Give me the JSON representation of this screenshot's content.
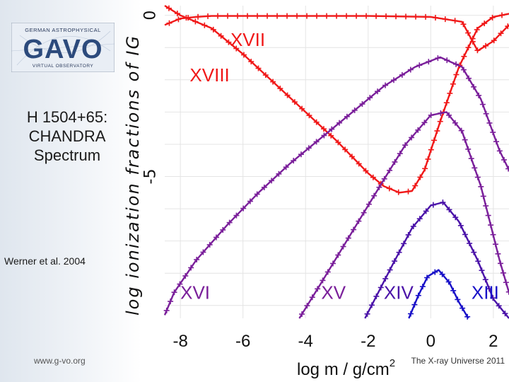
{
  "logo": {
    "org_line": "GERMAN ASTROPHYSICAL",
    "name": "GAVO",
    "sub_line": "VIRTUAL OBSERVATORY"
  },
  "slide": {
    "title_lines": [
      "H 1504+65:",
      "CHANDRA",
      "Spectrum"
    ],
    "credit": "Werner et al. 2004",
    "footer_left": "www.g-vo.org",
    "footer_right": "The X-ray Universe 2011"
  },
  "colors": {
    "red": "#f01818",
    "purple": "#7a1f9a",
    "violet": "#4a12a8",
    "blue": "#1810c8"
  },
  "chart_data": {
    "type": "line",
    "title": "",
    "xlabel": "log m / g/cm",
    "xlabel_superscript": "2",
    "ylabel": "log ionization fractions of IG",
    "xlim": [
      -8.5,
      2.5
    ],
    "ylim": [
      -9.4,
      0.3
    ],
    "x_ticks": [
      -8,
      -6,
      -4,
      -2,
      0,
      2
    ],
    "x_tick_labels": [
      "-8",
      "-6",
      "-4",
      "-2",
      "0",
      "2"
    ],
    "y_ticks": [
      0,
      -5
    ],
    "y_tick_labels": [
      "0",
      "-5"
    ],
    "grid": true,
    "series": [
      {
        "name": "XVII",
        "color": "red",
        "x": [
          -8.5,
          -8.0,
          -7.5,
          -7.0,
          -6.0,
          -4.0,
          -2.0,
          0.0,
          1.0,
          1.5,
          2.0,
          2.5
        ],
        "y": [
          -0.3,
          -0.1,
          -0.05,
          -0.02,
          -0.02,
          -0.02,
          -0.02,
          -0.05,
          -0.2,
          -1.1,
          -0.8,
          -0.3
        ],
        "label_pos": [
          -6.4,
          -0.95
        ]
      },
      {
        "name": "XVIII",
        "color": "red",
        "x": [
          -8.5,
          -8.0,
          -7.0,
          -6.0,
          -5.0,
          -4.0,
          -3.0,
          -2.0,
          -1.5,
          -1.0,
          -0.6,
          -0.2,
          0.3,
          0.9,
          1.5,
          2.0,
          2.5
        ],
        "y": [
          0.3,
          0.0,
          -0.4,
          -1.2,
          -2.1,
          -3.0,
          -3.9,
          -4.9,
          -5.3,
          -5.5,
          -5.45,
          -4.8,
          -3.3,
          -1.6,
          -0.4,
          -0.05,
          0.05
        ],
        "label_pos": [
          -7.7,
          -2.05
        ]
      },
      {
        "name": "XVI",
        "color": "purple",
        "x": [
          -8.5,
          -8.2,
          -7.5,
          -6.5,
          -5.5,
          -4.5,
          -3.5,
          -2.5,
          -1.5,
          -0.5,
          0.3,
          1.0,
          1.6,
          2.2,
          2.5
        ],
        "y": [
          -9.3,
          -8.6,
          -7.6,
          -6.5,
          -5.5,
          -4.6,
          -3.8,
          -3.0,
          -2.2,
          -1.6,
          -1.3,
          -1.6,
          -2.6,
          -4.2,
          -4.8
        ],
        "label_pos": [
          -8.0,
          -8.8
        ]
      },
      {
        "name": "XV",
        "color": "purple",
        "x": [
          -4.2,
          -3.5,
          -2.5,
          -1.5,
          -0.8,
          0.0,
          0.5,
          1.0,
          1.6,
          2.2,
          2.5
        ],
        "y": [
          -9.4,
          -8.3,
          -6.7,
          -5.1,
          -4.0,
          -3.1,
          -3.0,
          -3.6,
          -5.3,
          -7.6,
          -8.6
        ],
        "label_pos": [
          -3.5,
          -8.8
        ]
      },
      {
        "name": "XIV",
        "color": "violet",
        "x": [
          -2.1,
          -1.2,
          -0.6,
          0.0,
          0.4,
          0.9,
          1.5,
          2.0,
          2.5
        ],
        "y": [
          -9.4,
          -7.7,
          -6.6,
          -5.9,
          -5.8,
          -6.4,
          -7.6,
          -8.8,
          -9.4
        ],
        "label_pos": [
          -1.5,
          -8.8
        ]
      },
      {
        "name": "XIII",
        "color": "blue",
        "x": [
          -0.7,
          -0.4,
          -0.1,
          0.25,
          0.6,
          0.9,
          1.2
        ],
        "y": [
          -9.4,
          -8.7,
          -8.1,
          -7.9,
          -8.3,
          -8.9,
          -9.4
        ],
        "label_pos": [
          1.3,
          -8.8
        ]
      }
    ]
  }
}
